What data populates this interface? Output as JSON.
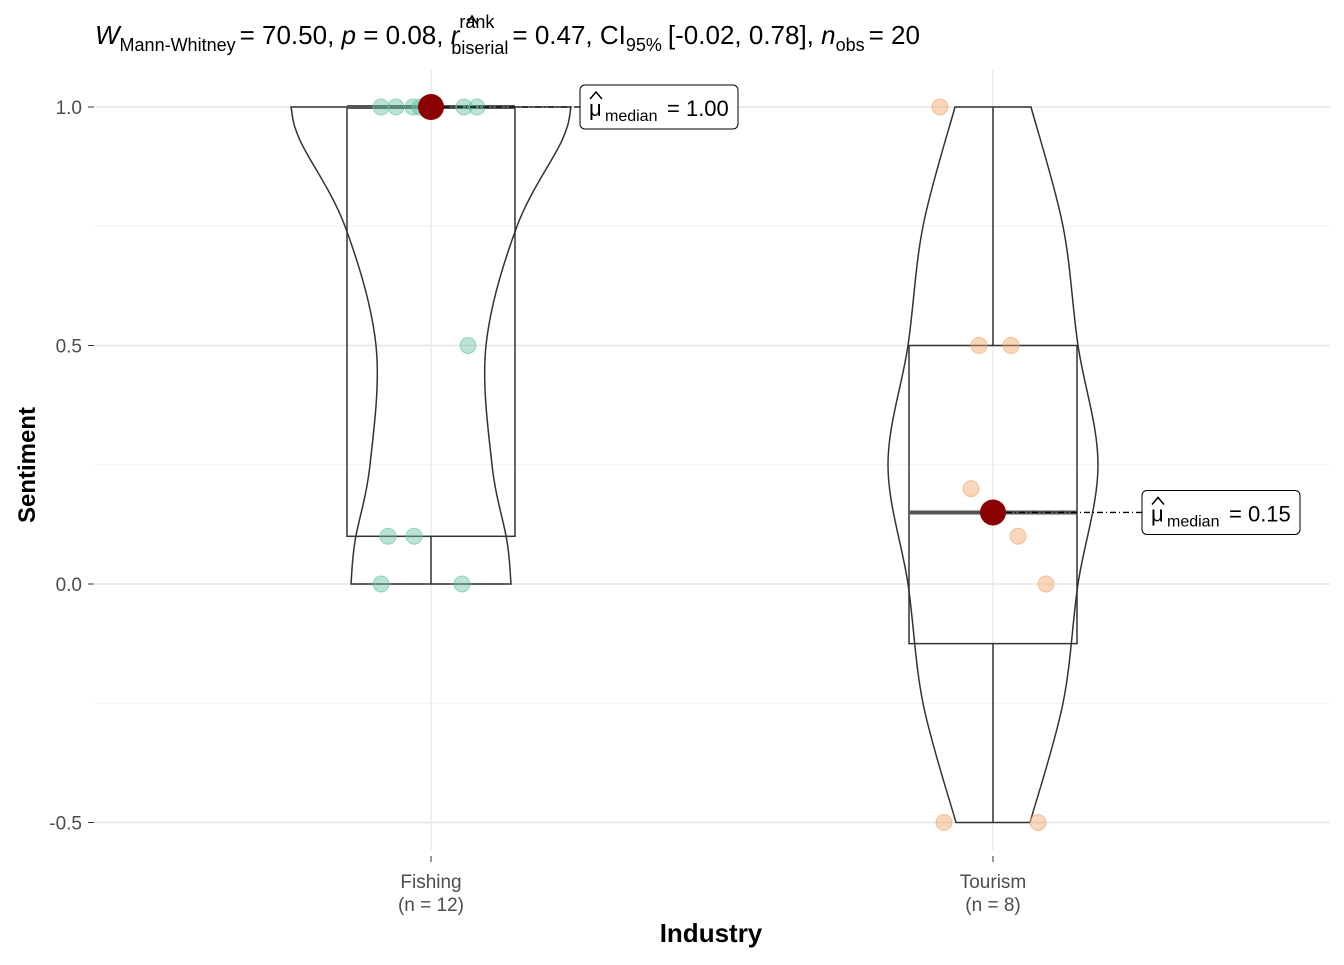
{
  "chart_data": {
    "type": "violin-box-scatter",
    "title": {
      "w_symbol": "W",
      "w_sub": "Mann-Whitney",
      "w_value": "= 70.50,",
      "p_symbol": "p",
      "p_value": "= 0.08,",
      "r_symbol": "r",
      "r_sup": "rank",
      "r_sub": "biserial",
      "r_value": "= 0.47,",
      "ci_label": "CI",
      "ci_sub": "95%",
      "ci_value": "[-0.02, 0.78],",
      "n_symbol": "n",
      "n_sub": "obs",
      "n_value": "= 20"
    },
    "xlabel": "Industry",
    "ylabel": "Sentiment",
    "ylim": [
      -0.55,
      1.075
    ],
    "yticks": [
      {
        "value": 1.0,
        "label": "1.0"
      },
      {
        "value": 0.5,
        "label": "0.5"
      },
      {
        "value": 0.0,
        "label": "0.0"
      },
      {
        "value": -0.5,
        "label": "-0.5"
      }
    ],
    "minor_grid": [
      0.75,
      0.25,
      -0.25
    ],
    "grid": true,
    "groups": [
      {
        "name": "Fishing",
        "n_label": "(n = 12)",
        "color": "#66C2A5",
        "values": [
          1.0,
          1.0,
          1.0,
          1.0,
          1.0,
          1.0,
          1.0,
          0.5,
          0.1,
          0.1,
          0.0,
          0.0
        ],
        "box": {
          "min": 0.0,
          "q1": 0.1,
          "median": 1.0,
          "q3": 1.0,
          "max": 1.0
        },
        "median_label": {
          "symbol": "μ",
          "sub": "median",
          "value": "= 1.00"
        },
        "median_value": 1.0
      },
      {
        "name": "Tourism",
        "n_label": "(n = 8)",
        "color": "#F4A466",
        "values": [
          1.0,
          0.5,
          0.5,
          0.2,
          0.1,
          0.0,
          -0.5,
          -0.5
        ],
        "box": {
          "min": -0.5,
          "q1": -0.125,
          "median": 0.15,
          "q3": 0.5,
          "max": 1.0
        },
        "median_label": {
          "symbol": "μ",
          "sub": "median",
          "value": "= 0.15"
        },
        "median_value": 0.15
      }
    ],
    "median_point_color": "#8B0000"
  }
}
